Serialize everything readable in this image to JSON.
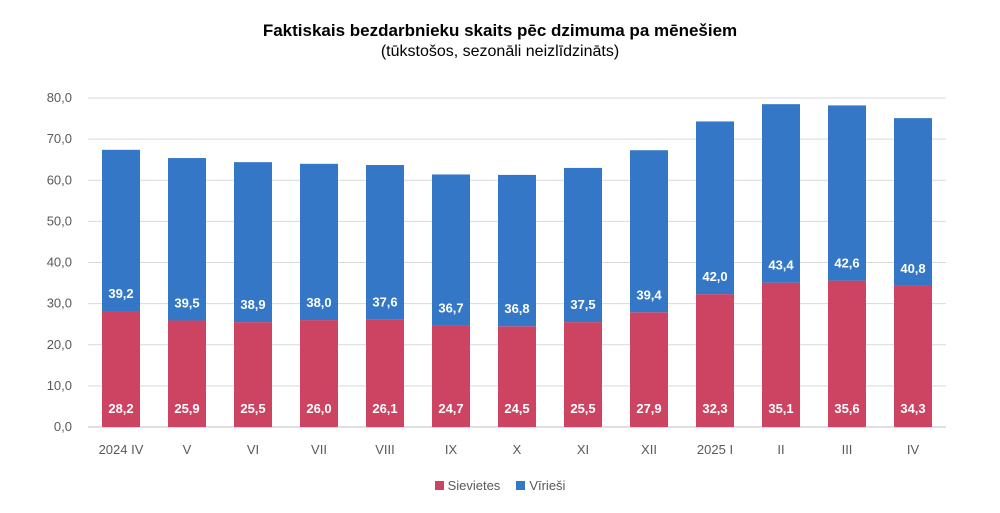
{
  "chart_data": {
    "type": "bar",
    "stacked": true,
    "title": "Faktiskais bezdarbnieku skaits pēc dzimuma pa mēnešiem",
    "subtitle": "(tūkstošos, sezonāli neizlīdzināts)",
    "categories": [
      "2024 IV",
      "V",
      "VI",
      "VII",
      "VIII",
      "IX",
      "X",
      "XI",
      "XII",
      "2025 I",
      "II",
      "III",
      "IV"
    ],
    "series": [
      {
        "name": "Sievietes",
        "color": "#cc4462",
        "values": [
          28.2,
          25.9,
          25.5,
          26.0,
          26.1,
          24.7,
          24.5,
          25.5,
          27.9,
          32.3,
          35.1,
          35.6,
          34.3
        ],
        "labels": [
          "28,2",
          "25,9",
          "25,5",
          "26,0",
          "26,1",
          "24,7",
          "24,5",
          "25,5",
          "27,9",
          "32,3",
          "35,1",
          "35,6",
          "34,3"
        ]
      },
      {
        "name": "Vīrieši",
        "color": "#3377c6",
        "values": [
          39.2,
          39.5,
          38.9,
          38.0,
          37.6,
          36.7,
          36.8,
          37.5,
          39.4,
          42.0,
          43.4,
          42.6,
          40.8
        ],
        "labels": [
          "39,2",
          "39,5",
          "38,9",
          "38,0",
          "37,6",
          "36,7",
          "36,8",
          "37,5",
          "39,4",
          "42,0",
          "43,4",
          "42,6",
          "40,8"
        ]
      }
    ],
    "yticks": [
      0,
      10,
      20,
      30,
      40,
      50,
      60,
      70,
      80
    ],
    "ytick_labels": [
      "0,0",
      "10,0",
      "20,0",
      "30,0",
      "40,0",
      "50,0",
      "60,0",
      "70,0",
      "80,0"
    ],
    "ylim": [
      0,
      80
    ],
    "grid": true,
    "legend_position": "bottom",
    "xlabel": "",
    "ylabel": ""
  }
}
